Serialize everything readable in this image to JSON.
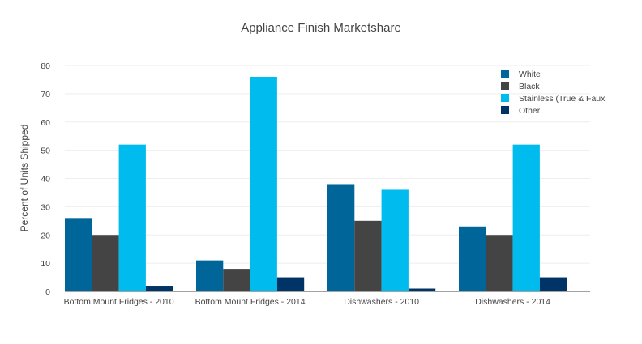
{
  "chart_data": {
    "type": "bar",
    "title": "Appliance Finish Marketshare",
    "xlabel": "",
    "ylabel": "Percent of Units Shipped",
    "ylim": [
      0,
      80
    ],
    "yticks": [
      0,
      10,
      20,
      30,
      40,
      50,
      60,
      70,
      80
    ],
    "grid": true,
    "legend_position": "top-right",
    "categories": [
      "Bottom Mount Fridges - 2010",
      "Bottom Mount Fridges - 2014",
      "Dishwashers - 2010",
      "Dishwashers - 2014"
    ],
    "series": [
      {
        "name": "White",
        "color": "#006699",
        "values": [
          26,
          11,
          38,
          23
        ]
      },
      {
        "name": "Black",
        "color": "#444444",
        "values": [
          20,
          8,
          25,
          20
        ]
      },
      {
        "name": "Stainless (True & Faux",
        "color": "#00bbee",
        "values": [
          52,
          76,
          36,
          52
        ]
      },
      {
        "name": "Other",
        "color": "#003366",
        "values": [
          2,
          5,
          1,
          5
        ]
      }
    ]
  }
}
